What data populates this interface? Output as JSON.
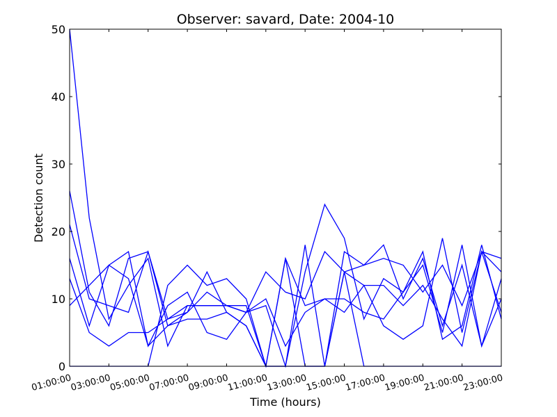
{
  "chart_data": {
    "type": "line",
    "title": "Observer: savard, Date: 2004-10",
    "xlabel": "Time (hours)",
    "ylabel": "Detection count",
    "xlim": [
      1,
      23
    ],
    "ylim": [
      0,
      50
    ],
    "yticks": [
      0,
      10,
      20,
      30,
      40,
      50
    ],
    "xticks": [
      {
        "x": 1,
        "label": "01:00:00"
      },
      {
        "x": 3,
        "label": "03:00:00"
      },
      {
        "x": 5,
        "label": "05:00:00"
      },
      {
        "x": 7,
        "label": "07:00:00"
      },
      {
        "x": 9,
        "label": "09:00:00"
      },
      {
        "x": 11,
        "label": "11:00:00"
      },
      {
        "x": 13,
        "label": "13:00:00"
      },
      {
        "x": 15,
        "label": "15:00:00"
      },
      {
        "x": 17,
        "label": "17:00:00"
      },
      {
        "x": 19,
        "label": "19:00:00"
      },
      {
        "x": 21,
        "label": "21:00:00"
      },
      {
        "x": 23,
        "label": "23:00:00"
      }
    ],
    "x": [
      1,
      2,
      3,
      4,
      5,
      6,
      7,
      8,
      9,
      10,
      11,
      12,
      13,
      14,
      15,
      16,
      17,
      18,
      19,
      20,
      21,
      22,
      23
    ],
    "series": [
      {
        "values": [
          50,
          22,
          7,
          12,
          16,
          3,
          9,
          9,
          9,
          9,
          0,
          0,
          0,
          0,
          14,
          0,
          0,
          0,
          0,
          0,
          0,
          0,
          0
        ]
      },
      {
        "values": [
          26,
          11,
          6,
          16,
          17,
          6,
          8,
          11,
          9,
          8,
          14,
          11,
          10,
          17,
          14,
          15,
          16,
          15,
          11,
          15,
          9,
          17,
          16
        ]
      },
      {
        "values": [
          21,
          10,
          9,
          8,
          17,
          7,
          8,
          14,
          8,
          6,
          0,
          16,
          0,
          0,
          14,
          12,
          12,
          9,
          12,
          7,
          3,
          17,
          14
        ]
      },
      {
        "values": [
          16,
          6,
          15,
          17,
          3,
          9,
          11,
          5,
          4,
          8,
          10,
          3,
          8,
          10,
          10,
          8,
          7,
          11,
          17,
          4,
          6,
          18,
          7
        ]
      },
      {
        "values": [
          13,
          5,
          3,
          5,
          5,
          7,
          9,
          9,
          9,
          8,
          9,
          0,
          14,
          24,
          19,
          7,
          13,
          11,
          15,
          5,
          18,
          3,
          10
        ]
      },
      {
        "values": [
          9,
          12,
          15,
          13,
          3,
          6,
          7,
          7,
          8,
          6,
          0,
          16,
          9,
          10,
          8,
          12,
          6,
          4,
          6,
          19,
          5,
          17,
          8
        ]
      },
      {
        "values": [
          0,
          0,
          0,
          0,
          0,
          12,
          15,
          12,
          13,
          10,
          0,
          0,
          18,
          0,
          17,
          15,
          18,
          10,
          16,
          6,
          15,
          3,
          13
        ]
      }
    ],
    "color": "#0000ff",
    "grid": false
  }
}
